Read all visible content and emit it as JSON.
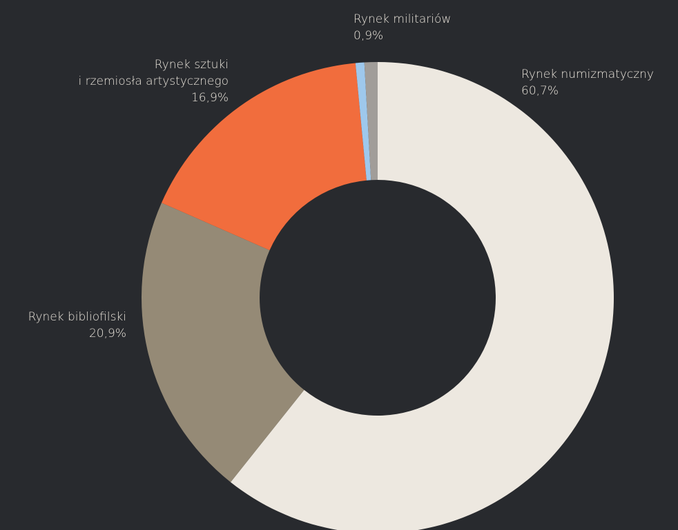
{
  "chart_data": {
    "type": "pie",
    "style": "donut",
    "title": "",
    "background_color": "#282a2e",
    "slices": [
      {
        "label": "Rynek numizmatyczny",
        "value": 60.7,
        "value_label": "60,7%",
        "color": "#ede8e0"
      },
      {
        "label": "Rynek bibliofilski",
        "value": 20.9,
        "value_label": "20,9%",
        "color": "#958a76"
      },
      {
        "label": "Rynek sztuki\ni rzemiosła artystycznego",
        "value": 16.9,
        "value_label": "16,9%",
        "color": "#f16d3d"
      },
      {
        "label": "",
        "value": 0.6,
        "value_label": "",
        "color": "#9ec8ec"
      },
      {
        "label": "Rynek militariów",
        "value": 0.9,
        "value_label": "0,9%",
        "color": "#a19d99"
      }
    ]
  }
}
